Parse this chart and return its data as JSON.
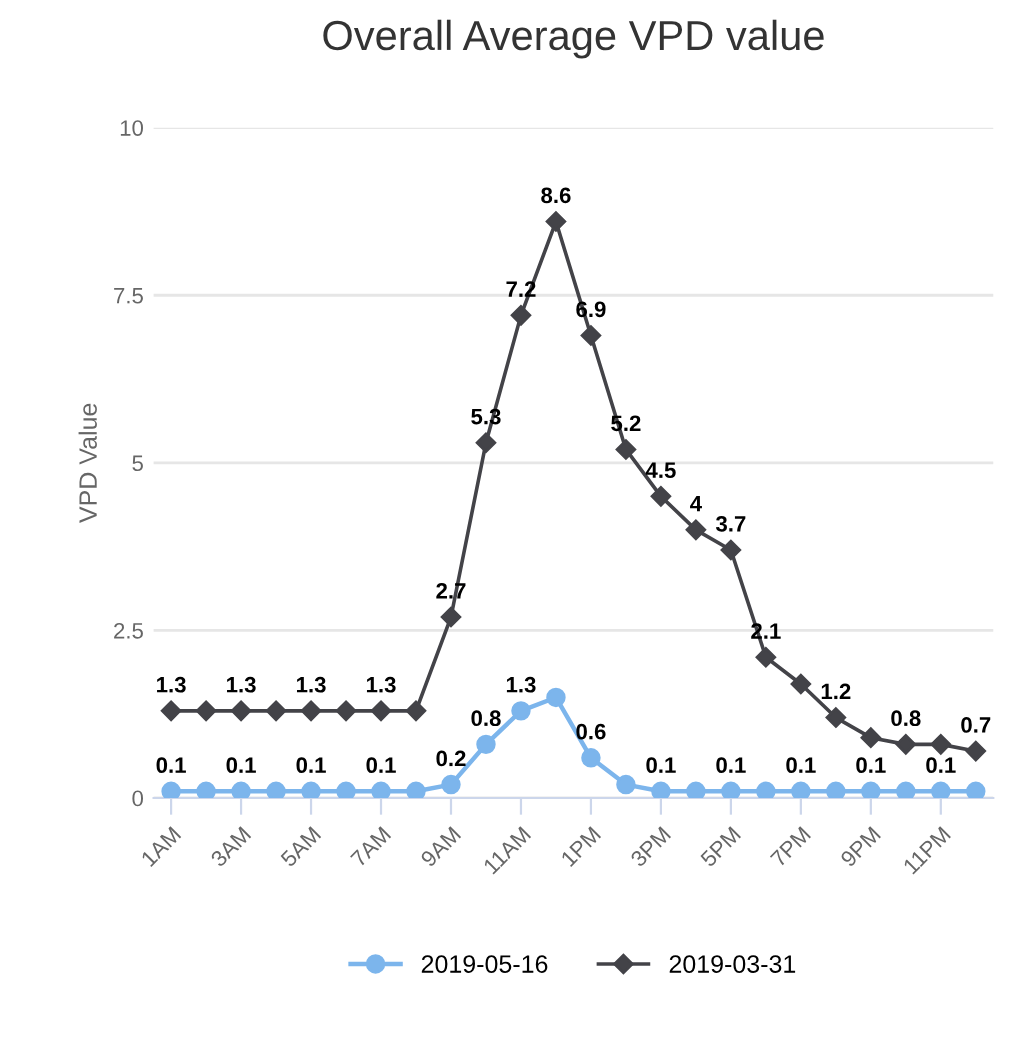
{
  "chart_data": {
    "type": "line",
    "title": "Overall Average VPD value",
    "ylabel": "VPD Value",
    "categories": [
      "1AM",
      null,
      "3AM",
      null,
      "5AM",
      null,
      "7AM",
      null,
      "9AM",
      null,
      "11AM",
      null,
      "1PM",
      null,
      "3PM",
      null,
      "5PM",
      null,
      "7PM",
      null,
      "9PM",
      null,
      "11PM",
      null
    ],
    "ylim": [
      0,
      10
    ],
    "yticks": [
      0,
      2.5,
      5,
      7.5,
      10
    ],
    "grid": "y",
    "legend": "bottom",
    "series": [
      {
        "name": "2019-05-16",
        "color": "#7cb5ec",
        "marker": "circle",
        "values": [
          0.1,
          0.1,
          0.1,
          0.1,
          0.1,
          0.1,
          0.1,
          0.1,
          0.2,
          0.8,
          1.3,
          1.5,
          0.6,
          0.2,
          0.1,
          0.1,
          0.1,
          0.1,
          0.1,
          0.1,
          0.1,
          0.1,
          0.1,
          0.1
        ],
        "value_labels": [
          "0.1",
          null,
          "0.1",
          null,
          "0.1",
          null,
          "0.1",
          null,
          "0.2",
          "0.8",
          "1.3",
          null,
          "0.6",
          null,
          "0.1",
          null,
          "0.1",
          null,
          "0.1",
          null,
          "0.1",
          null,
          "0.1",
          null
        ]
      },
      {
        "name": "2019-03-31",
        "color": "#434348",
        "marker": "diamond",
        "values": [
          1.3,
          1.3,
          1.3,
          1.3,
          1.3,
          1.3,
          1.3,
          1.3,
          2.7,
          5.3,
          7.2,
          8.6,
          6.9,
          5.2,
          4.5,
          4,
          3.7,
          2.1,
          1.7,
          1.2,
          0.9,
          0.8,
          0.8,
          0.7
        ],
        "value_labels": [
          "1.3",
          null,
          "1.3",
          null,
          "1.3",
          null,
          "1.3",
          null,
          "2.7",
          "5.3",
          "7.2",
          "8.6",
          "6.9",
          "5.2",
          "4.5",
          "4",
          "3.7",
          "2.1",
          null,
          "1.2",
          null,
          "0.8",
          null,
          "0.7"
        ]
      }
    ]
  }
}
